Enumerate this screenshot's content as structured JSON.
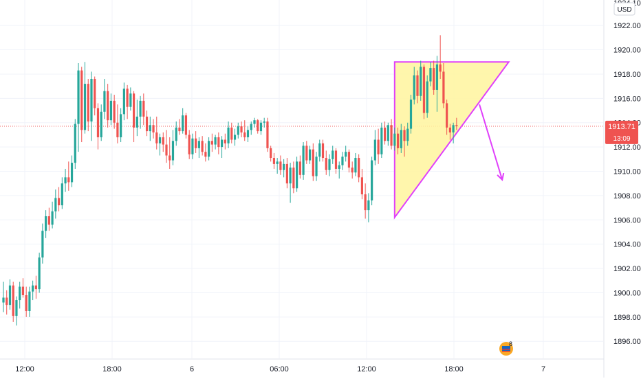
{
  "chart_data": {
    "type": "candlestick",
    "currency_label": "USD",
    "y_axis": {
      "range": [
        1894.6,
        1924.1
      ],
      "ticks": [
        "1896.00",
        "1898.00",
        "1900.00",
        "1902.00",
        "1904.00",
        "1906.00",
        "1908.00",
        "1910.00",
        "1912.00",
        "1914.00",
        "1916.00",
        "1918.00",
        "1920.00",
        "1922.00"
      ],
      "top_partial_label": "1924.10"
    },
    "x_axis": {
      "labels": [
        "12:00",
        "18:00",
        "6",
        "06:00",
        "12:00",
        "18:00",
        "7"
      ]
    },
    "last_price": {
      "value": 1913.71,
      "label": "1913.71",
      "countdown": "13:09"
    },
    "colors": {
      "up": "#26a69a",
      "down": "#ef5350",
      "annotation": "#e040fb",
      "triangle_fill": "#fff59d",
      "price_line": "#ef5350"
    },
    "candles": [
      [
        1899.2,
        1900.9,
        1898.4,
        1899.6
      ],
      [
        1899.6,
        1900.2,
        1898.2,
        1899.0
      ],
      [
        1899.0,
        1901.1,
        1898.6,
        1900.6
      ],
      [
        1900.6,
        1900.9,
        1897.6,
        1898.1
      ],
      [
        1898.1,
        1899.7,
        1897.3,
        1899.4
      ],
      [
        1899.4,
        1900.9,
        1898.7,
        1900.5
      ],
      [
        1900.5,
        1901.2,
        1899.6,
        1899.8
      ],
      [
        1899.8,
        1900.5,
        1898.0,
        1898.5
      ],
      [
        1898.5,
        1900.5,
        1898.0,
        1900.1
      ],
      [
        1900.1,
        1901.0,
        1899.4,
        1900.6
      ],
      [
        1900.6,
        1901.4,
        1899.5,
        1900.3
      ],
      [
        1900.3,
        1903.3,
        1900.0,
        1902.9
      ],
      [
        1902.9,
        1905.7,
        1902.4,
        1905.1
      ],
      [
        1905.1,
        1906.8,
        1904.5,
        1906.3
      ],
      [
        1906.3,
        1907.0,
        1905.1,
        1905.6
      ],
      [
        1905.6,
        1907.5,
        1905.3,
        1906.7
      ],
      [
        1906.7,
        1908.5,
        1906.1,
        1907.8
      ],
      [
        1907.8,
        1908.7,
        1906.7,
        1907.2
      ],
      [
        1907.2,
        1909.5,
        1906.9,
        1909.0
      ],
      [
        1909.0,
        1910.2,
        1908.3,
        1909.5
      ],
      [
        1909.5,
        1910.8,
        1908.4,
        1909.1
      ],
      [
        1909.1,
        1911.3,
        1908.7,
        1910.7
      ],
      [
        1910.7,
        1914.3,
        1910.2,
        1913.9
      ],
      [
        1913.9,
        1918.9,
        1911.6,
        1918.3
      ],
      [
        1918.3,
        1918.6,
        1912.4,
        1913.4
      ],
      [
        1913.4,
        1919.0,
        1913.1,
        1917.2
      ],
      [
        1917.2,
        1917.6,
        1913.3,
        1914.1
      ],
      [
        1914.1,
        1918.2,
        1912.5,
        1917.6
      ],
      [
        1917.6,
        1917.8,
        1914.6,
        1915.2
      ],
      [
        1915.2,
        1915.6,
        1911.8,
        1912.8
      ],
      [
        1912.8,
        1915.5,
        1912.5,
        1914.9
      ],
      [
        1914.9,
        1917.6,
        1914.3,
        1916.6
      ],
      [
        1916.6,
        1917.2,
        1913.6,
        1914.2
      ],
      [
        1914.2,
        1916.4,
        1913.8,
        1915.8
      ],
      [
        1915.8,
        1916.3,
        1913.5,
        1914.0
      ],
      [
        1914.0,
        1915.5,
        1912.3,
        1912.8
      ],
      [
        1912.8,
        1915.2,
        1912.4,
        1914.7
      ],
      [
        1914.7,
        1917.3,
        1914.2,
        1916.8
      ],
      [
        1916.8,
        1917.1,
        1914.3,
        1915.3
      ],
      [
        1915.3,
        1916.9,
        1915.0,
        1916.4
      ],
      [
        1916.4,
        1916.6,
        1912.4,
        1913.6
      ],
      [
        1913.6,
        1915.9,
        1912.9,
        1914.5
      ],
      [
        1914.5,
        1916.2,
        1913.5,
        1915.8
      ],
      [
        1915.8,
        1916.4,
        1913.8,
        1914.5
      ],
      [
        1914.5,
        1915.0,
        1912.9,
        1913.3
      ],
      [
        1913.3,
        1914.5,
        1912.5,
        1913.8
      ],
      [
        1913.8,
        1914.3,
        1912.7,
        1913.2
      ],
      [
        1913.2,
        1914.5,
        1911.8,
        1912.3
      ],
      [
        1912.3,
        1913.1,
        1911.3,
        1912.8
      ],
      [
        1912.8,
        1913.2,
        1911.6,
        1912.2
      ],
      [
        1912.2,
        1913.4,
        1910.7,
        1911.3
      ],
      [
        1911.3,
        1912.8,
        1910.2,
        1910.9
      ],
      [
        1910.9,
        1913.4,
        1910.5,
        1912.5
      ],
      [
        1912.5,
        1914.1,
        1912.1,
        1913.6
      ],
      [
        1913.6,
        1914.3,
        1913.0,
        1913.3
      ],
      [
        1913.3,
        1915.2,
        1913.1,
        1914.6
      ],
      [
        1914.6,
        1914.8,
        1912.7,
        1913.0
      ],
      [
        1913.0,
        1913.4,
        1911.0,
        1911.4
      ],
      [
        1911.4,
        1913.1,
        1911.0,
        1912.7
      ],
      [
        1912.7,
        1913.3,
        1911.5,
        1911.9
      ],
      [
        1911.9,
        1912.8,
        1911.1,
        1912.5
      ],
      [
        1912.5,
        1912.9,
        1911.3,
        1911.6
      ],
      [
        1911.6,
        1912.3,
        1910.8,
        1911.2
      ],
      [
        1911.2,
        1912.8,
        1910.9,
        1912.5
      ],
      [
        1912.5,
        1913.1,
        1911.6,
        1912.2
      ],
      [
        1912.2,
        1913.0,
        1911.8,
        1912.8
      ],
      [
        1912.8,
        1913.2,
        1911.4,
        1912.0
      ],
      [
        1912.0,
        1912.9,
        1911.1,
        1912.6
      ],
      [
        1912.6,
        1913.1,
        1911.8,
        1912.3
      ],
      [
        1912.3,
        1914.1,
        1911.9,
        1913.6
      ],
      [
        1913.6,
        1914.0,
        1912.3,
        1912.6
      ],
      [
        1912.6,
        1913.5,
        1912.1,
        1913.0
      ],
      [
        1913.0,
        1914.0,
        1912.7,
        1913.7
      ],
      [
        1913.7,
        1914.1,
        1912.8,
        1913.2
      ],
      [
        1913.2,
        1914.2,
        1912.5,
        1912.8
      ],
      [
        1912.8,
        1913.7,
        1912.4,
        1913.4
      ],
      [
        1913.4,
        1914.1,
        1913.0,
        1913.9
      ],
      [
        1913.9,
        1914.4,
        1913.6,
        1914.2
      ],
      [
        1914.2,
        1914.3,
        1913.1,
        1913.3
      ],
      [
        1913.3,
        1914.2,
        1913.0,
        1914.0
      ],
      [
        1914.0,
        1914.4,
        1913.6,
        1914.1
      ],
      [
        1914.1,
        1914.4,
        1911.6,
        1911.9
      ],
      [
        1911.9,
        1912.1,
        1910.8,
        1911.1
      ],
      [
        1911.1,
        1911.5,
        1910.2,
        1910.6
      ],
      [
        1910.6,
        1911.1,
        1909.8,
        1910.8
      ],
      [
        1910.8,
        1911.3,
        1909.7,
        1910.1
      ],
      [
        1910.1,
        1911.0,
        1909.5,
        1910.6
      ],
      [
        1910.6,
        1911.1,
        1908.6,
        1909.0
      ],
      [
        1909.0,
        1910.7,
        1907.4,
        1910.3
      ],
      [
        1910.3,
        1910.8,
        1908.2,
        1908.6
      ],
      [
        1908.6,
        1911.2,
        1908.3,
        1910.8
      ],
      [
        1910.8,
        1911.3,
        1909.4,
        1909.7
      ],
      [
        1909.7,
        1912.4,
        1909.3,
        1912.1
      ],
      [
        1912.1,
        1912.5,
        1910.6,
        1910.9
      ],
      [
        1910.9,
        1912.1,
        1910.6,
        1911.8
      ],
      [
        1911.8,
        1912.3,
        1909.2,
        1909.6
      ],
      [
        1909.6,
        1911.6,
        1909.2,
        1911.2
      ],
      [
        1911.2,
        1912.6,
        1910.8,
        1912.3
      ],
      [
        1912.3,
        1912.6,
        1910.8,
        1911.1
      ],
      [
        1911.1,
        1911.7,
        1909.7,
        1910.1
      ],
      [
        1910.1,
        1911.4,
        1909.6,
        1911.0
      ],
      [
        1911.0,
        1912.1,
        1910.6,
        1911.7
      ],
      [
        1911.7,
        1911.9,
        1909.8,
        1910.2
      ],
      [
        1910.2,
        1910.8,
        1909.4,
        1910.5
      ],
      [
        1910.5,
        1911.6,
        1910.1,
        1911.2
      ],
      [
        1911.2,
        1912.1,
        1910.8,
        1911.6
      ],
      [
        1911.6,
        1911.8,
        1909.9,
        1910.3
      ],
      [
        1910.3,
        1910.8,
        1909.4,
        1909.9
      ],
      [
        1909.9,
        1911.5,
        1909.6,
        1911.1
      ],
      [
        1911.1,
        1911.4,
        1909.1,
        1909.5
      ],
      [
        1909.5,
        1910.2,
        1907.7,
        1908.1
      ],
      [
        1908.1,
        1909.0,
        1906.1,
        1906.8
      ],
      [
        1906.8,
        1908.2,
        1905.8,
        1907.6
      ],
      [
        1907.6,
        1911.2,
        1907.2,
        1910.9
      ],
      [
        1910.9,
        1913.4,
        1910.5,
        1912.6
      ],
      [
        1912.6,
        1913.5,
        1910.6,
        1911.4
      ],
      [
        1911.4,
        1914.0,
        1911.1,
        1913.6
      ],
      [
        1913.6,
        1914.1,
        1912.2,
        1912.5
      ],
      [
        1912.5,
        1914.0,
        1912.1,
        1913.8
      ],
      [
        1913.8,
        1914.3,
        1911.8,
        1912.1
      ],
      [
        1912.1,
        1913.6,
        1911.7,
        1913.1
      ],
      [
        1913.1,
        1913.6,
        1911.4,
        1911.9
      ],
      [
        1911.9,
        1913.9,
        1911.5,
        1913.4
      ],
      [
        1913.4,
        1913.7,
        1911.2,
        1912.5
      ],
      [
        1912.5,
        1914.0,
        1912.1,
        1913.5
      ],
      [
        1913.5,
        1916.3,
        1913.1,
        1915.9
      ],
      [
        1915.9,
        1918.6,
        1915.5,
        1917.9
      ],
      [
        1917.9,
        1918.3,
        1915.6,
        1916.2
      ],
      [
        1916.2,
        1919.1,
        1915.8,
        1918.6
      ],
      [
        1918.6,
        1918.8,
        1914.3,
        1914.8
      ],
      [
        1914.8,
        1917.9,
        1914.4,
        1917.4
      ],
      [
        1917.4,
        1919.0,
        1917.0,
        1918.5
      ],
      [
        1918.5,
        1919.1,
        1916.3,
        1916.7
      ],
      [
        1916.7,
        1919.5,
        1914.9,
        1918.8
      ],
      [
        1918.8,
        1921.2,
        1917.6,
        1918.2
      ],
      [
        1918.2,
        1918.9,
        1915.2,
        1915.6
      ],
      [
        1915.6,
        1915.9,
        1913.0,
        1913.6
      ],
      [
        1913.6,
        1913.9,
        1912.6,
        1913.2
      ],
      [
        1913.2,
        1914.0,
        1912.3,
        1913.8
      ],
      [
        1913.8,
        1914.4,
        1913.4,
        1913.71
      ]
    ],
    "annotations": [
      {
        "type": "triangle",
        "points": [
          [
            120,
            1919.0
          ],
          [
            120,
            1906.2
          ],
          [
            155,
            1919.0
          ]
        ]
      },
      {
        "type": "arrow",
        "from": [
          146,
          1915.5
        ],
        "to": [
          153,
          1909.3
        ]
      }
    ]
  },
  "watermark": {
    "badge_count": "8",
    "icon": "us-flag-event-icon"
  }
}
